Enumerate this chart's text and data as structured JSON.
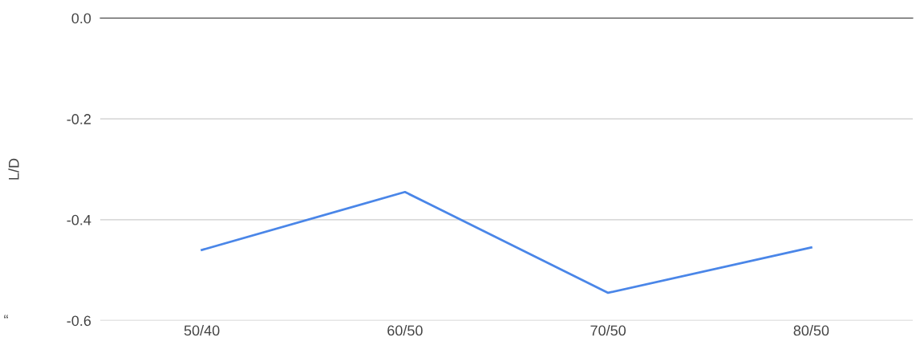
{
  "chart_data": {
    "type": "line",
    "ylabel": "L/D",
    "categories": [
      "50/40",
      "60/50",
      "70/50",
      "80/50"
    ],
    "series": [
      {
        "color": "#4a86e8",
        "values": [
          -0.46,
          -0.345,
          -0.545,
          -0.455
        ]
      }
    ],
    "ylim": [
      -0.6,
      0
    ],
    "yticks": [
      {
        "value": 0,
        "label": "0.0"
      },
      {
        "value": -0.2,
        "label": "-0.2"
      },
      {
        "value": -0.4,
        "label": "-0.4"
      },
      {
        "value": -0.6,
        "label": "-0.6"
      }
    ],
    "grid": "y",
    "line_style": "solid",
    "marker": "none",
    "annotations": [
      "“"
    ]
  }
}
